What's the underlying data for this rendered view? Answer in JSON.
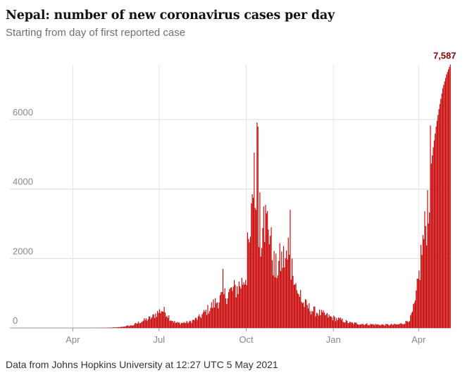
{
  "chart_data": {
    "type": "bar",
    "title": "Nepal: number of new coronavirus cases per day",
    "subtitle": "Starting from day of first reported case",
    "source": "Data from Johns Hopkins University at 12:27 UTC 5 May 2021",
    "xlabel": "",
    "ylabel": "",
    "ylim": [
      0,
      7700
    ],
    "yticks": [
      0,
      2000,
      4000,
      6000
    ],
    "ytick_labels": [
      "0",
      "2000",
      "4000",
      "6000"
    ],
    "xticks": [
      {
        "label": "Apr",
        "day": 62
      },
      {
        "label": "Jul",
        "day": 153
      },
      {
        "label": "Oct",
        "day": 245
      },
      {
        "label": "Jan",
        "day": 337
      },
      {
        "label": "Apr",
        "day": 427
      }
    ],
    "first_day": "2020-01-30",
    "last_day": "2021-05-04",
    "total_days": 461,
    "bar_color": "#c70000",
    "grid": true,
    "annotations": [
      {
        "day": 460,
        "value": 7587,
        "label": "7,587",
        "color": "#8b0000"
      }
    ],
    "keypoints": [
      [
        0,
        0
      ],
      [
        60,
        0
      ],
      [
        95,
        3
      ],
      [
        110,
        20
      ],
      [
        125,
        80
      ],
      [
        135,
        200
      ],
      [
        145,
        300
      ],
      [
        150,
        420
      ],
      [
        155,
        520
      ],
      [
        160,
        450
      ],
      [
        165,
        250
      ],
      [
        170,
        150
      ],
      [
        175,
        140
      ],
      [
        185,
        170
      ],
      [
        195,
        300
      ],
      [
        205,
        550
      ],
      [
        215,
        800
      ],
      [
        225,
        1000
      ],
      [
        235,
        1150
      ],
      [
        240,
        1300
      ],
      [
        245,
        1600
      ],
      [
        248,
        2200
      ],
      [
        250,
        3000
      ],
      [
        252,
        4200
      ],
      [
        254,
        3500
      ],
      [
        256,
        4800
      ],
      [
        258,
        3300
      ],
      [
        260,
        2200
      ],
      [
        262,
        3700
      ],
      [
        264,
        3200
      ],
      [
        266,
        2900
      ],
      [
        268,
        3100
      ],
      [
        270,
        2700
      ],
      [
        272,
        2200
      ],
      [
        275,
        1600
      ],
      [
        280,
        1900
      ],
      [
        285,
        2000
      ],
      [
        290,
        1900
      ],
      [
        295,
        1600
      ],
      [
        300,
        900
      ],
      [
        305,
        700
      ],
      [
        315,
        500
      ],
      [
        325,
        400
      ],
      [
        335,
        300
      ],
      [
        345,
        230
      ],
      [
        355,
        140
      ],
      [
        370,
        110
      ],
      [
        390,
        90
      ],
      [
        405,
        100
      ],
      [
        412,
        150
      ],
      [
        418,
        280
      ],
      [
        423,
        700
      ],
      [
        427,
        1500
      ],
      [
        430,
        2300
      ],
      [
        433,
        2700
      ],
      [
        436,
        3600
      ],
      [
        439,
        4500
      ],
      [
        442,
        5200
      ],
      [
        445,
        5800
      ],
      [
        448,
        6300
      ],
      [
        452,
        6900
      ],
      [
        456,
        7300
      ],
      [
        460,
        7587
      ]
    ],
    "spikes": [
      [
        220,
        1700
      ],
      [
        246,
        2750
      ],
      [
        251,
        3850
      ],
      [
        253,
        5050
      ],
      [
        255,
        3400
      ],
      [
        257,
        5800
      ],
      [
        259,
        3900
      ],
      [
        261,
        2300
      ],
      [
        263,
        3500
      ],
      [
        266,
        3300
      ],
      [
        271,
        2900
      ],
      [
        282,
        2200
      ],
      [
        289,
        2600
      ],
      [
        291,
        3400
      ],
      [
        294,
        1500
      ],
      [
        296,
        1250
      ],
      [
        299,
        1000
      ],
      [
        302,
        1100
      ]
    ]
  }
}
